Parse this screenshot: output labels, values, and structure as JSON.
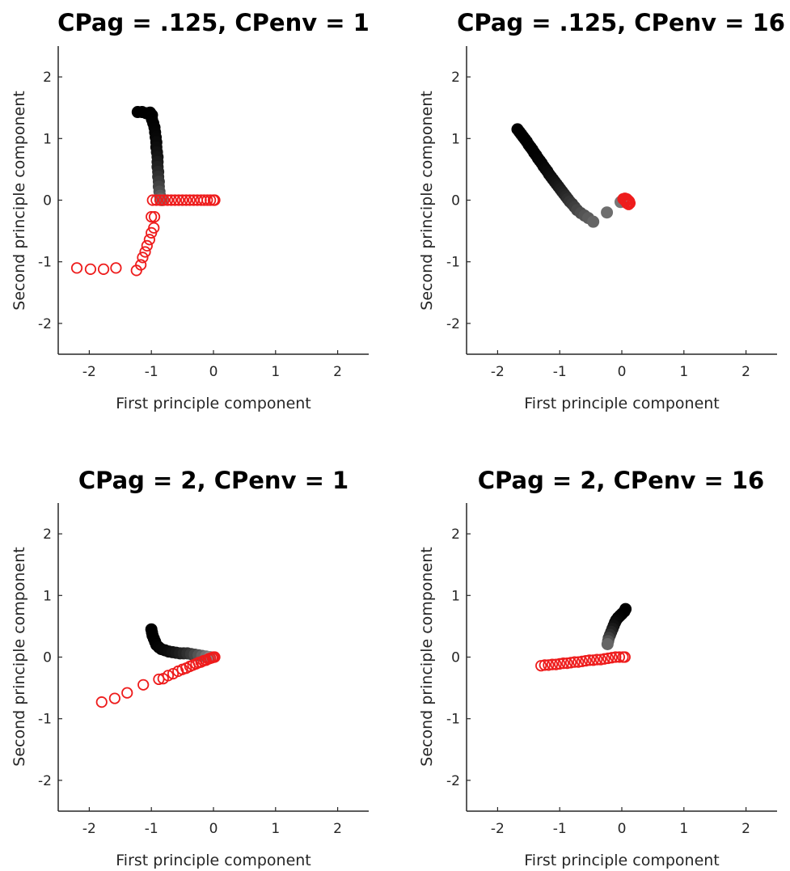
{
  "figure": {
    "background": "#ffffff",
    "axis_color": "#262626"
  },
  "chart_data": [
    {
      "type": "scatter",
      "title": "CPag = .125, CPenv = 1",
      "xlabel": "First principle component",
      "ylabel": "Second principle component",
      "xlim": [
        -2.5,
        2.5
      ],
      "ylim": [
        -2.5,
        2.5
      ],
      "xticks": [
        -2,
        -1,
        0,
        1,
        2
      ],
      "yticks": [
        -2,
        -1,
        0,
        1,
        2
      ],
      "xtick_labels": [
        "-2",
        "-1",
        "0",
        "1",
        "2"
      ],
      "ytick_labels": [
        "-2",
        "-1",
        "0",
        "1",
        "2"
      ],
      "grid": false,
      "series": [
        {
          "marker": "filled-circle",
          "color": "#000000",
          "fade_to": "#777777",
          "points": [
            [
              -1.22,
              1.43
            ],
            [
              -1.15,
              1.43
            ],
            [
              -1.08,
              1.41
            ],
            [
              -1.02,
              1.42
            ],
            [
              -0.99,
              1.38
            ],
            [
              -0.99,
              1.31
            ],
            [
              -0.97,
              1.25
            ],
            [
              -0.95,
              1.18
            ],
            [
              -0.94,
              1.1
            ],
            [
              -0.93,
              1.02
            ],
            [
              -0.92,
              0.94
            ],
            [
              -0.92,
              0.86
            ],
            [
              -0.91,
              0.78
            ],
            [
              -0.9,
              0.7
            ],
            [
              -0.9,
              0.62
            ],
            [
              -0.9,
              0.54
            ],
            [
              -0.89,
              0.46
            ],
            [
              -0.89,
              0.38
            ],
            [
              -0.88,
              0.3
            ],
            [
              -0.88,
              0.22
            ],
            [
              -0.87,
              0.14
            ],
            [
              -0.86,
              0.07
            ],
            [
              -0.85,
              0.02
            ],
            [
              -0.83,
              0.0
            ]
          ]
        },
        {
          "marker": "open-circle",
          "color": "#ee1c1c",
          "points": [
            [
              -2.2,
              -1.1
            ],
            [
              -1.98,
              -1.12
            ],
            [
              -1.77,
              -1.12
            ],
            [
              -1.57,
              -1.1
            ],
            [
              -1.24,
              -1.14
            ],
            [
              -1.17,
              -1.05
            ],
            [
              -1.14,
              -0.93
            ],
            [
              -1.1,
              -0.84
            ],
            [
              -1.07,
              -0.74
            ],
            [
              -1.03,
              -0.64
            ],
            [
              -1.0,
              -0.53
            ],
            [
              -0.96,
              -0.45
            ],
            [
              -1.0,
              -0.27
            ],
            [
              -0.95,
              -0.27
            ],
            [
              -0.98,
              0.0
            ],
            [
              -0.92,
              0.0
            ],
            [
              -0.86,
              0.0
            ],
            [
              -0.8,
              0.0
            ],
            [
              -0.74,
              0.0
            ],
            [
              -0.68,
              0.0
            ],
            [
              -0.62,
              0.0
            ],
            [
              -0.56,
              0.0
            ],
            [
              -0.5,
              0.0
            ],
            [
              -0.44,
              0.0
            ],
            [
              -0.38,
              0.0
            ],
            [
              -0.32,
              0.0
            ],
            [
              -0.26,
              0.0
            ],
            [
              -0.2,
              0.0
            ],
            [
              -0.15,
              0.0
            ],
            [
              -0.1,
              0.0
            ],
            [
              -0.05,
              0.0
            ],
            [
              0.0,
              0.0
            ],
            [
              0.02,
              0.0
            ]
          ]
        }
      ]
    },
    {
      "type": "scatter",
      "title": "CPag = .125, CPenv = 16",
      "xlabel": "First principle component",
      "ylabel": "Second principle component",
      "xlim": [
        -2.5,
        2.5
      ],
      "ylim": [
        -2.5,
        2.5
      ],
      "xticks": [
        -2,
        -1,
        0,
        1,
        2
      ],
      "yticks": [
        -2,
        -1,
        0,
        1,
        2
      ],
      "xtick_labels": [
        "-2",
        "-1",
        "0",
        "1",
        "2"
      ],
      "ytick_labels": [
        "-2",
        "-1",
        "0",
        "1",
        "2"
      ],
      "grid": false,
      "series": [
        {
          "marker": "filled-circle",
          "color": "#000000",
          "fade_to": "#777777",
          "points": [
            [
              -1.68,
              1.15
            ],
            [
              -1.65,
              1.11
            ],
            [
              -1.62,
              1.07
            ],
            [
              -1.59,
              1.03
            ],
            [
              -1.56,
              0.99
            ],
            [
              -1.53,
              0.95
            ],
            [
              -1.5,
              0.9
            ],
            [
              -1.47,
              0.86
            ],
            [
              -1.44,
              0.82
            ],
            [
              -1.41,
              0.77
            ],
            [
              -1.38,
              0.73
            ],
            [
              -1.35,
              0.68
            ],
            [
              -1.32,
              0.64
            ],
            [
              -1.29,
              0.6
            ],
            [
              -1.26,
              0.55
            ],
            [
              -1.23,
              0.51
            ],
            [
              -1.2,
              0.47
            ],
            [
              -1.17,
              0.42
            ],
            [
              -1.14,
              0.38
            ],
            [
              -1.11,
              0.34
            ],
            [
              -1.08,
              0.3
            ],
            [
              -1.05,
              0.26
            ],
            [
              -1.02,
              0.22
            ],
            [
              -0.99,
              0.18
            ],
            [
              -0.96,
              0.14
            ],
            [
              -0.93,
              0.1
            ],
            [
              -0.9,
              0.06
            ],
            [
              -0.87,
              0.02
            ],
            [
              -0.84,
              -0.02
            ],
            [
              -0.8,
              -0.06
            ],
            [
              -0.76,
              -0.11
            ],
            [
              -0.72,
              -0.16
            ],
            [
              -0.66,
              -0.21
            ],
            [
              -0.6,
              -0.25
            ],
            [
              -0.54,
              -0.29
            ],
            [
              -0.46,
              -0.35
            ],
            [
              -0.24,
              -0.2
            ],
            [
              -0.02,
              -0.03
            ]
          ]
        },
        {
          "marker": "open-circle",
          "color": "#ee1c1c",
          "points": [
            [
              0.02,
              0.02
            ],
            [
              0.05,
              0.03
            ],
            [
              0.08,
              0.02
            ],
            [
              0.1,
              0.0
            ],
            [
              0.12,
              -0.02
            ],
            [
              0.13,
              -0.05
            ],
            [
              0.11,
              -0.07
            ],
            [
              0.08,
              -0.05
            ],
            [
              0.06,
              -0.02
            ],
            [
              0.04,
              0.0
            ],
            [
              0.07,
              0.0
            ],
            [
              0.1,
              -0.03
            ],
            [
              0.12,
              -0.04
            ]
          ]
        }
      ]
    },
    {
      "type": "scatter",
      "title": "CPag = 2, CPenv = 1",
      "xlabel": "First principle component",
      "ylabel": "Second principle component",
      "xlim": [
        -2.5,
        2.5
      ],
      "ylim": [
        -2.5,
        2.5
      ],
      "xticks": [
        -2,
        -1,
        0,
        1,
        2
      ],
      "yticks": [
        -2,
        -1,
        0,
        1,
        2
      ],
      "xtick_labels": [
        "-2",
        "-1",
        "0",
        "1",
        "2"
      ],
      "ytick_labels": [
        "-2",
        "-1",
        "0",
        "1",
        "2"
      ],
      "grid": false,
      "series": [
        {
          "marker": "filled-circle",
          "color": "#000000",
          "fade_to": "#888888",
          "points": [
            [
              -1.0,
              0.45
            ],
            [
              -0.99,
              0.4
            ],
            [
              -0.98,
              0.35
            ],
            [
              -0.96,
              0.3
            ],
            [
              -0.94,
              0.25
            ],
            [
              -0.92,
              0.2
            ],
            [
              -0.88,
              0.16
            ],
            [
              -0.84,
              0.13
            ],
            [
              -0.78,
              0.11
            ],
            [
              -0.72,
              0.09
            ],
            [
              -0.66,
              0.08
            ],
            [
              -0.6,
              0.07
            ],
            [
              -0.54,
              0.06
            ],
            [
              -0.48,
              0.06
            ],
            [
              -0.42,
              0.06
            ],
            [
              -0.36,
              0.05
            ],
            [
              -0.3,
              0.04
            ],
            [
              -0.24,
              0.03
            ],
            [
              -0.18,
              0.02
            ],
            [
              -0.12,
              0.01
            ],
            [
              -0.06,
              0.0
            ]
          ]
        },
        {
          "marker": "open-circle",
          "color": "#ee1c1c",
          "points": [
            [
              -1.8,
              -0.73
            ],
            [
              -1.59,
              -0.67
            ],
            [
              -1.39,
              -0.58
            ],
            [
              -1.13,
              -0.45
            ],
            [
              -0.88,
              -0.36
            ],
            [
              -0.81,
              -0.35
            ],
            [
              -0.73,
              -0.3
            ],
            [
              -0.65,
              -0.27
            ],
            [
              -0.57,
              -0.23
            ],
            [
              -0.5,
              -0.2
            ],
            [
              -0.44,
              -0.18
            ],
            [
              -0.38,
              -0.15
            ],
            [
              -0.33,
              -0.13
            ],
            [
              -0.28,
              -0.11
            ],
            [
              -0.24,
              -0.09
            ],
            [
              -0.2,
              -0.08
            ],
            [
              -0.16,
              -0.06
            ],
            [
              -0.12,
              -0.05
            ],
            [
              -0.08,
              -0.03
            ],
            [
              -0.05,
              -0.02
            ],
            [
              -0.02,
              -0.01
            ],
            [
              0.0,
              0.0
            ],
            [
              0.02,
              0.0
            ]
          ]
        }
      ]
    },
    {
      "type": "scatter",
      "title": "CPag = 2, CPenv = 16",
      "xlabel": "First principle component",
      "ylabel": "Second principle component",
      "xlim": [
        -2.5,
        2.5
      ],
      "ylim": [
        -2.5,
        2.5
      ],
      "xticks": [
        -2,
        -1,
        0,
        1,
        2
      ],
      "yticks": [
        -2,
        -1,
        0,
        1,
        2
      ],
      "xtick_labels": [
        "-2",
        "-1",
        "0",
        "1",
        "2"
      ],
      "ytick_labels": [
        "-2",
        "-1",
        "0",
        "1",
        "2"
      ],
      "grid": false,
      "series": [
        {
          "marker": "filled-circle",
          "color": "#000000",
          "fade_to": "#666666",
          "points": [
            [
              0.06,
              0.78
            ],
            [
              0.04,
              0.74
            ],
            [
              0.0,
              0.7
            ],
            [
              -0.03,
              0.67
            ],
            [
              -0.06,
              0.64
            ],
            [
              -0.09,
              0.6
            ],
            [
              -0.11,
              0.56
            ],
            [
              -0.13,
              0.51
            ],
            [
              -0.15,
              0.46
            ],
            [
              -0.17,
              0.41
            ],
            [
              -0.19,
              0.36
            ],
            [
              -0.21,
              0.31
            ],
            [
              -0.22,
              0.26
            ],
            [
              -0.23,
              0.21
            ]
          ]
        },
        {
          "marker": "open-circle",
          "color": "#ee1c1c",
          "points": [
            [
              -1.3,
              -0.14
            ],
            [
              -1.24,
              -0.13
            ],
            [
              -1.18,
              -0.13
            ],
            [
              -1.12,
              -0.12
            ],
            [
              -1.06,
              -0.12
            ],
            [
              -1.0,
              -0.11
            ],
            [
              -0.94,
              -0.1
            ],
            [
              -0.88,
              -0.1
            ],
            [
              -0.82,
              -0.09
            ],
            [
              -0.76,
              -0.08
            ],
            [
              -0.7,
              -0.08
            ],
            [
              -0.64,
              -0.07
            ],
            [
              -0.58,
              -0.06
            ],
            [
              -0.52,
              -0.05
            ],
            [
              -0.46,
              -0.05
            ],
            [
              -0.4,
              -0.04
            ],
            [
              -0.34,
              -0.04
            ],
            [
              -0.28,
              -0.03
            ],
            [
              -0.22,
              -0.02
            ],
            [
              -0.16,
              -0.01
            ],
            [
              -0.1,
              0.0
            ],
            [
              -0.04,
              0.0
            ],
            [
              0.02,
              0.0
            ],
            [
              0.05,
              0.0
            ]
          ]
        }
      ]
    }
  ]
}
